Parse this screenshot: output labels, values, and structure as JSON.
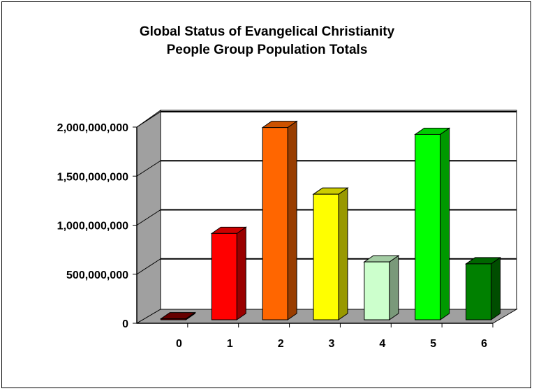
{
  "chart_data": {
    "type": "bar",
    "title": [
      "Global Status of Evangelical Christianity",
      "People Group Population Totals"
    ],
    "categories": [
      "0",
      "1",
      "2",
      "3",
      "4",
      "5",
      "6"
    ],
    "values": [
      10000000,
      880000000,
      1960000000,
      1280000000,
      590000000,
      1890000000,
      570000000
    ],
    "colors": [
      "#800000",
      "#ff0000",
      "#ff6600",
      "#ffff00",
      "#ccffcc",
      "#00ff00",
      "#008000"
    ],
    "ylim": [
      0,
      2000000000
    ],
    "yticks": [
      0,
      500000000,
      1000000000,
      1500000000,
      2000000000
    ],
    "ytick_labels": [
      "0",
      "500,000,000",
      "1,000,000,000",
      "1,500,000,000",
      "2,000,000,000"
    ],
    "xlabel": "",
    "ylabel": "",
    "grid": true,
    "legend": "none",
    "style": "3d-column"
  }
}
